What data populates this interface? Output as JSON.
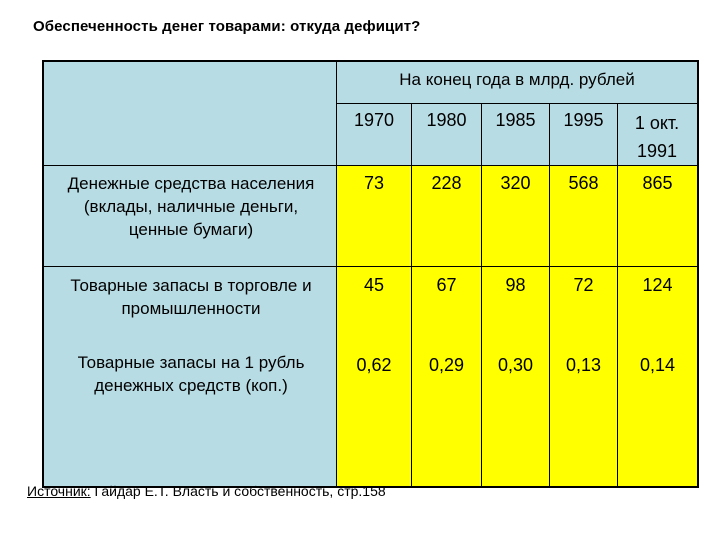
{
  "title": "Обеспеченность денег товарами: откуда дефицит?",
  "table": {
    "group_header": "На конец года в млрд. рублей",
    "years": [
      "1970",
      "1980",
      "1985",
      "1995",
      "1 окт. 1991"
    ],
    "rows": [
      {
        "label": "Денежные средства населения (вклады, наличные деньги, ценные бумаги)",
        "values": [
          "73",
          "228",
          "320",
          "568",
          "865"
        ]
      },
      {
        "label": "Товарные запасы в торговле и промышленности",
        "values": [
          "45",
          "67",
          "98",
          "72",
          "124"
        ]
      },
      {
        "label": "Товарные запасы на 1 рубль денежных средств (коп.)",
        "values": [
          "0,62",
          "0,29",
          "0,30",
          "0,13",
          "0,14"
        ]
      }
    ],
    "colors": {
      "label_bg": "#b8dce4",
      "value_bg": "#ffff00",
      "border": "#000000"
    }
  },
  "source": {
    "prefix": "Источник:",
    "text": " Гайдар Е.Т. Власть и собственность, стр.158"
  }
}
